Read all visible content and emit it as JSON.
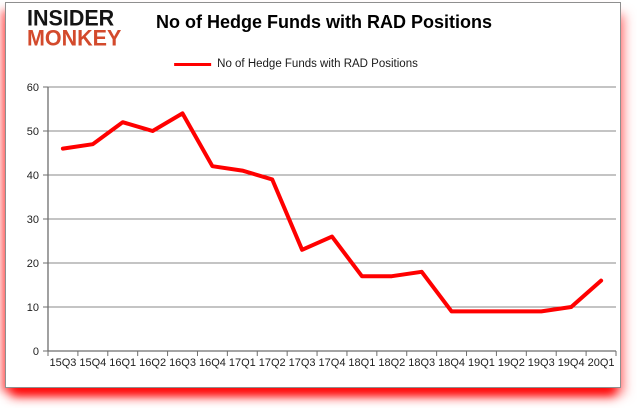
{
  "logo": {
    "line1": "INSIDER",
    "line2": "MONKEY"
  },
  "header": {
    "title": "No of Hedge Funds with RAD Positions"
  },
  "legend": {
    "label": "No of Hedge Funds with RAD Positions"
  },
  "colors": {
    "series": "#ff0000",
    "logo_black": "#141414",
    "logo_red": "#d34a2c",
    "grid": "#8a8a8a",
    "axis": "#6e6e6e",
    "tick_label": "#1f1f1f",
    "glow": "#ff0000"
  },
  "chart_data": {
    "type": "line",
    "title": "No of Hedge Funds with RAD Positions",
    "categories": [
      "15Q3",
      "15Q4",
      "16Q1",
      "16Q2",
      "16Q3",
      "16Q4",
      "17Q1",
      "17Q2",
      "17Q3",
      "17Q4",
      "18Q1",
      "18Q2",
      "18Q3",
      "18Q4",
      "19Q1",
      "19Q2",
      "19Q3",
      "19Q4",
      "20Q1"
    ],
    "series": [
      {
        "name": "No of Hedge Funds with RAD Positions",
        "color": "#ff0000",
        "values": [
          46,
          47,
          52,
          50,
          54,
          42,
          41,
          39,
          23,
          26,
          17,
          17,
          18,
          9,
          9,
          9,
          9,
          10,
          16
        ]
      }
    ],
    "ylim": [
      0,
      60
    ],
    "yticks": [
      0,
      10,
      20,
      30,
      40,
      50,
      60
    ],
    "grid": "horizontal",
    "legend_position": "top-center",
    "xlabel": "",
    "ylabel": ""
  }
}
